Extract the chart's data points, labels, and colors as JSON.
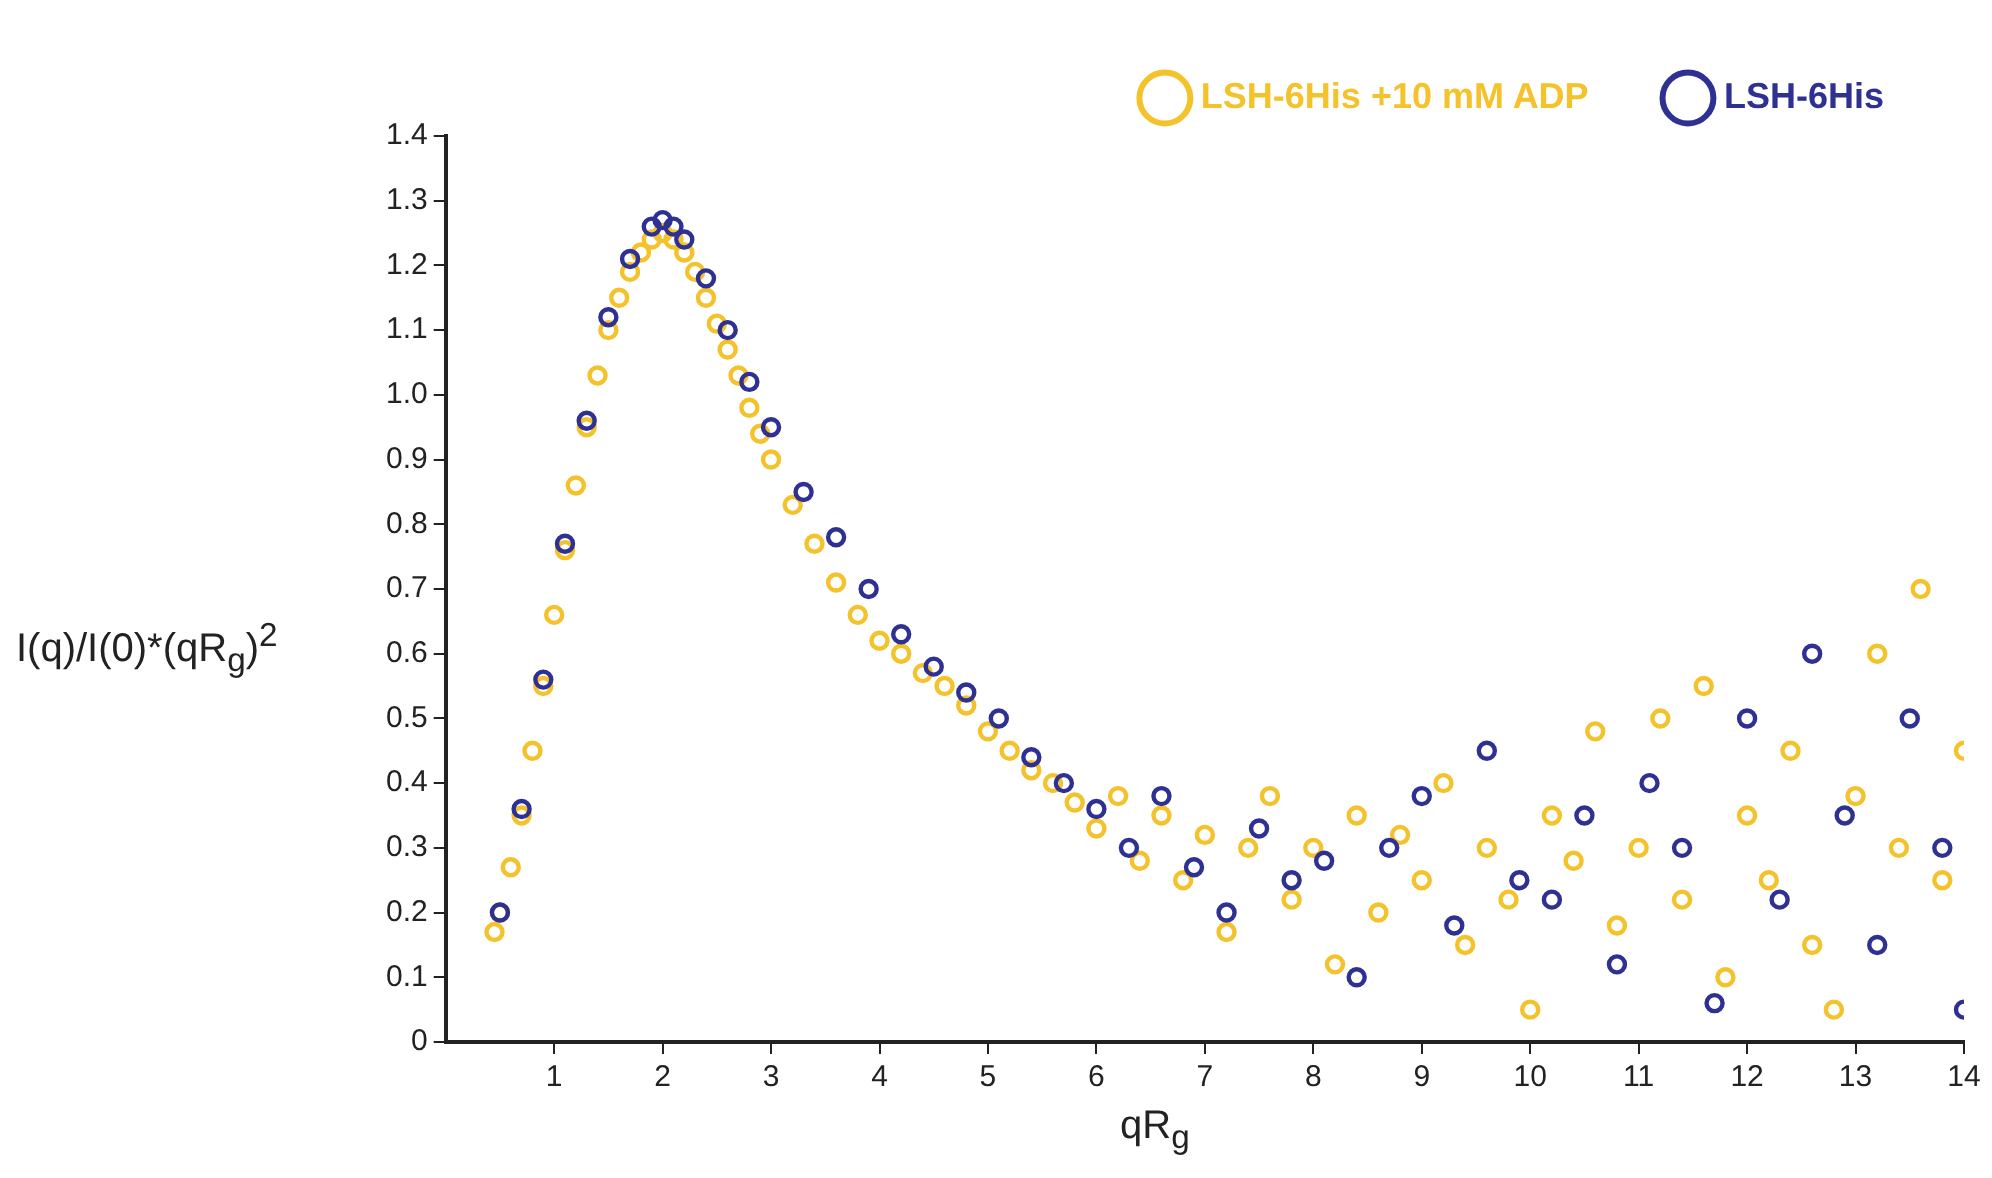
{
  "chart_data": {
    "type": "scatter",
    "xlabel": "qR$_{g}$",
    "ylabel": "I(q)/I(0)*(qR$_{g}$)$^{2}$",
    "xlim": [
      0,
      14
    ],
    "xticks": [
      1,
      2,
      3,
      4,
      5,
      6,
      7,
      8,
      9,
      10,
      11,
      12,
      13,
      14
    ],
    "ylim": [
      0,
      1.4
    ],
    "yticks": [
      0,
      0.1,
      0.2,
      0.3,
      0.4,
      0.5,
      0.6,
      0.7,
      0.8,
      0.9,
      {
        "value": 1,
        "label": "1.0"
      },
      1.1,
      1.2,
      1.3,
      1.4
    ],
    "grid": false,
    "legend": "top right",
    "marker": "circle",
    "series": [
      {
        "name": "LSH-6His +10 mM ADP",
        "color": "#f4c22b",
        "x": [
          0.45,
          0.5,
          0.6,
          0.7,
          0.8,
          0.9,
          1.0,
          1.1,
          1.2,
          1.3,
          1.4,
          1.5,
          1.6,
          1.7,
          1.8,
          1.9,
          2.0,
          2.1,
          2.2,
          2.3,
          2.4,
          2.5,
          2.6,
          2.7,
          2.8,
          2.9,
          3.0,
          3.2,
          3.4,
          3.6,
          3.8,
          4.0,
          4.2,
          4.4,
          4.6,
          4.8,
          5.0,
          5.2,
          5.4,
          5.6,
          5.8,
          6.0,
          6.2,
          6.4,
          6.6,
          6.8,
          7.0,
          7.2,
          7.4,
          7.6,
          7.8,
          8.0,
          8.2,
          8.4,
          8.6,
          8.8,
          9.0,
          9.2,
          9.4,
          9.6,
          9.8,
          10.0,
          10.2,
          10.4,
          10.6,
          10.8,
          11.0,
          11.2,
          11.4,
          11.6,
          11.8,
          12.0,
          12.2,
          12.4,
          12.6,
          12.8,
          13.0,
          13.2,
          13.4,
          13.6,
          13.8,
          14.0
        ],
        "values": [
          0.17,
          0.2,
          0.27,
          0.35,
          0.45,
          0.55,
          0.66,
          0.76,
          0.86,
          0.95,
          1.03,
          1.1,
          1.15,
          1.19,
          1.22,
          1.24,
          1.25,
          1.24,
          1.22,
          1.19,
          1.15,
          1.11,
          1.07,
          1.03,
          0.98,
          0.94,
          0.9,
          0.83,
          0.77,
          0.71,
          0.66,
          0.62,
          0.6,
          0.57,
          0.55,
          0.52,
          0.48,
          0.45,
          0.42,
          0.4,
          0.37,
          0.33,
          0.38,
          0.28,
          0.35,
          0.25,
          0.32,
          0.17,
          0.3,
          0.38,
          0.22,
          0.3,
          0.12,
          0.35,
          0.2,
          0.32,
          0.25,
          0.4,
          0.15,
          0.3,
          0.22,
          0.05,
          0.35,
          0.28,
          0.48,
          0.18,
          0.3,
          0.5,
          0.22,
          0.55,
          0.1,
          0.35,
          0.25,
          0.45,
          0.15,
          0.05,
          0.38,
          0.6,
          0.3,
          0.7,
          0.25,
          0.45
        ]
      },
      {
        "name": "LSH-6His",
        "color": "#2e3192",
        "x": [
          0.5,
          0.7,
          0.9,
          1.1,
          1.3,
          1.5,
          1.7,
          1.9,
          2.0,
          2.1,
          2.2,
          2.4,
          2.6,
          2.8,
          3.0,
          3.3,
          3.6,
          3.9,
          4.2,
          4.5,
          4.8,
          5.1,
          5.4,
          5.7,
          6.0,
          6.3,
          6.6,
          6.9,
          7.2,
          7.5,
          7.8,
          8.1,
          8.4,
          8.7,
          9.0,
          9.3,
          9.6,
          9.9,
          10.2,
          10.5,
          10.8,
          11.1,
          11.4,
          11.7,
          12.0,
          12.3,
          12.6,
          12.9,
          13.2,
          13.5,
          13.8,
          14.0
        ],
        "values": [
          0.2,
          0.36,
          0.56,
          0.77,
          0.96,
          1.12,
          1.21,
          1.26,
          1.27,
          1.26,
          1.24,
          1.18,
          1.1,
          1.02,
          0.95,
          0.85,
          0.78,
          0.7,
          0.63,
          0.58,
          0.54,
          0.5,
          0.44,
          0.4,
          0.36,
          0.3,
          0.38,
          0.27,
          0.2,
          0.33,
          0.25,
          0.28,
          0.1,
          0.3,
          0.38,
          0.18,
          0.45,
          0.25,
          0.22,
          0.35,
          0.12,
          0.4,
          0.3,
          0.06,
          0.5,
          0.22,
          0.6,
          0.35,
          0.15,
          0.5,
          0.3,
          0.05
        ]
      }
    ]
  }
}
